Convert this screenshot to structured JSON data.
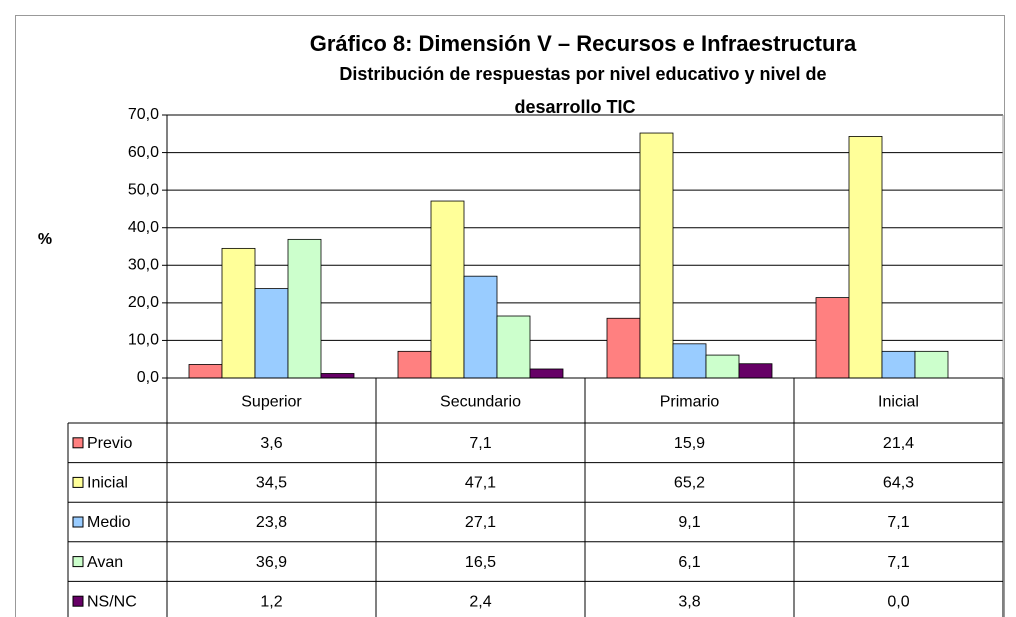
{
  "chart_data": {
    "type": "bar",
    "title": "Gráfico 8: Dimensión V – Recursos e Infraestructura",
    "subtitle": [
      "Distribución de respuestas por nivel educativo y nivel de",
      "desarrollo TIC"
    ],
    "ylabel": "%",
    "categories": [
      "Superior",
      "Secundario",
      "Primario",
      "Inicial"
    ],
    "series": [
      {
        "name": "Previo",
        "color": "#ff8080",
        "values": [
          3.6,
          7.1,
          15.9,
          21.4
        ],
        "value_labels": [
          "3,6",
          "7,1",
          "15,9",
          "21,4"
        ]
      },
      {
        "name": "Inicial",
        "color": "#ffff99",
        "values": [
          34.5,
          47.1,
          65.2,
          64.3
        ],
        "value_labels": [
          "34,5",
          "47,1",
          "65,2",
          "64,3"
        ]
      },
      {
        "name": "Medio",
        "color": "#99ccff",
        "values": [
          23.8,
          27.1,
          9.1,
          7.1
        ],
        "value_labels": [
          "23,8",
          "27,1",
          "9,1",
          "7,1"
        ]
      },
      {
        "name": "Avan",
        "color": "#ccffcc",
        "values": [
          36.9,
          16.5,
          6.1,
          7.1
        ],
        "value_labels": [
          "36,9",
          "16,5",
          "6,1",
          "7,1"
        ]
      },
      {
        "name": "NS/NC",
        "color": "#660066",
        "values": [
          1.2,
          2.4,
          3.8,
          0.0
        ],
        "value_labels": [
          "1,2",
          "2,4",
          "3,8",
          "0,0"
        ]
      }
    ],
    "ylim": [
      0,
      70
    ],
    "yticks": [
      {
        "value": 0,
        "label": "0,0"
      },
      {
        "value": 10,
        "label": "10,0"
      },
      {
        "value": 20,
        "label": "20,0"
      },
      {
        "value": 30,
        "label": "30,0"
      },
      {
        "value": 40,
        "label": "40,0"
      },
      {
        "value": 50,
        "label": "50,0"
      },
      {
        "value": 60,
        "label": "60,0"
      },
      {
        "value": 70,
        "label": "70,0"
      }
    ],
    "grid": true
  }
}
